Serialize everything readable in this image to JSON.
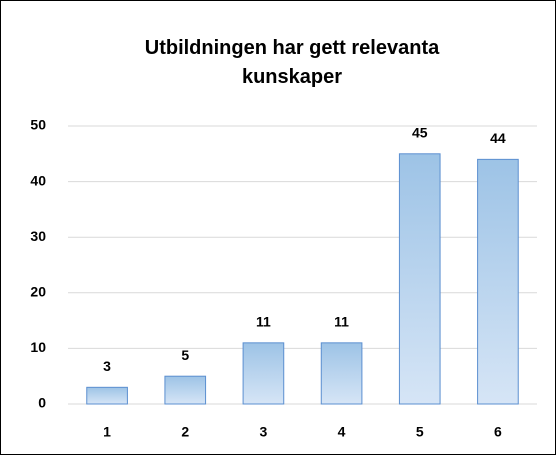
{
  "chart_data": {
    "type": "bar",
    "title": "Utbildningen har gett relevanta kunskaper",
    "categories": [
      "1",
      "2",
      "3",
      "4",
      "5",
      "6"
    ],
    "values": [
      3,
      5,
      11,
      11,
      45,
      44
    ],
    "color": "#9dc3e6",
    "ylim": [
      0,
      50
    ],
    "yticks": [
      0,
      10,
      20,
      30,
      40,
      50
    ],
    "grid": true
  }
}
